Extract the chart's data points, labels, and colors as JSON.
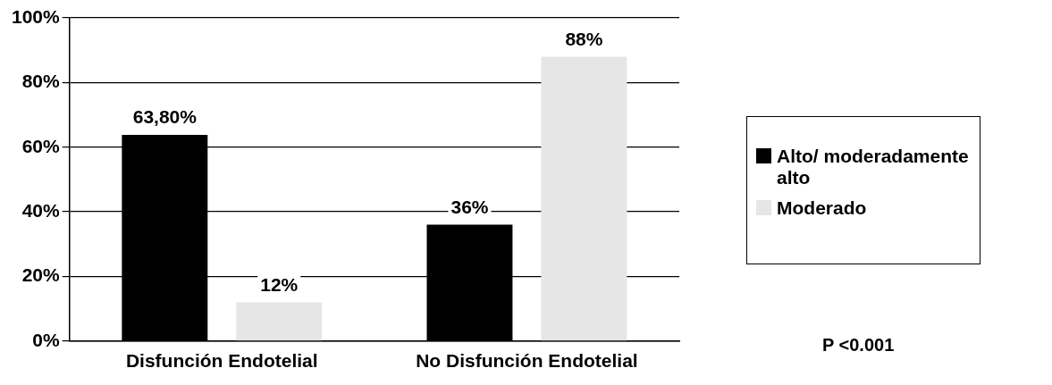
{
  "chart_data": {
    "type": "bar",
    "categories": [
      "Disfunción Endotelial",
      "No Disfunción Endotelial"
    ],
    "series": [
      {
        "name": "Alto/ moderadamente alto",
        "color": "#000000",
        "values": [
          63.8,
          36
        ],
        "value_labels": [
          "63,80%",
          "36%"
        ]
      },
      {
        "name": "Moderado",
        "color": "#e6e6e6",
        "values": [
          12,
          88
        ],
        "value_labels": [
          "12%",
          "88%"
        ]
      }
    ],
    "ylim": [
      0,
      100
    ],
    "yticks": [
      {
        "value": 0,
        "label": "0%"
      },
      {
        "value": 20,
        "label": "20%"
      },
      {
        "value": 40,
        "label": "40%"
      },
      {
        "value": 60,
        "label": "60%"
      },
      {
        "value": 80,
        "label": "80%"
      },
      {
        "value": 100,
        "label": "100%"
      }
    ],
    "grid": "y",
    "legend": "right",
    "annotations": [
      "P <0.001"
    ]
  }
}
